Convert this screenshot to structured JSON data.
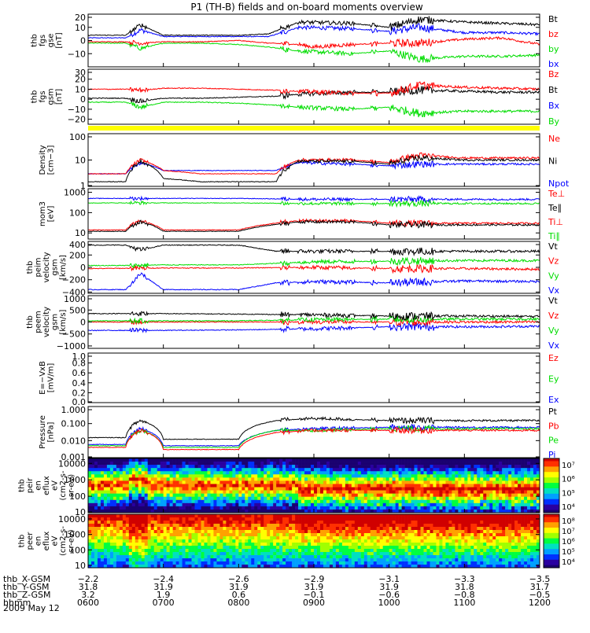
{
  "figure": {
    "title": "P1 (TH-B) fields and on-board moments overview",
    "date": "2009 May 12"
  },
  "colors": {
    "black": "#000000",
    "red": "#ff0000",
    "green": "#00dd00",
    "blue": "#0000ff",
    "yellow": "#ffff00"
  },
  "chart_data": [
    {
      "type": "line",
      "ylabel_lines": [
        "thb",
        "fgs",
        "gse",
        "[nT]"
      ],
      "ylim": [
        -20,
        20
      ],
      "yticks": [
        "20",
        "10",
        "0",
        "−10"
      ],
      "legend": [
        {
          "label": "Bt",
          "color": "#000000"
        },
        {
          "label": "bz",
          "color": "#ff0000"
        },
        {
          "label": "by",
          "color": "#00dd00"
        },
        {
          "label": "bx",
          "color": "#0000ff"
        }
      ],
      "series": [
        {
          "color": "#0000ff",
          "x": [
            6.0,
            6.5,
            6.7,
            7.0,
            7.5,
            8.0,
            8.4,
            8.8,
            9.5,
            10.0,
            10.4,
            11.0,
            11.5,
            12.0
          ],
          "y": [
            2,
            2,
            8,
            3,
            3,
            3,
            3,
            10,
            9,
            7,
            10,
            6,
            6,
            5
          ]
        },
        {
          "color": "#00dd00",
          "x": [
            6.0,
            6.5,
            6.7,
            7.0,
            7.5,
            8.0,
            8.4,
            8.8,
            9.5,
            10.0,
            10.4,
            11.0,
            11.5,
            12.0
          ],
          "y": [
            -2,
            -2,
            -6,
            -2,
            -2,
            -3,
            -5,
            -8,
            -10,
            -8,
            -14,
            -12,
            -12,
            -11
          ]
        },
        {
          "color": "#ff0000",
          "x": [
            6.0,
            6.5,
            6.7,
            7.0,
            7.5,
            8.0,
            8.4,
            8.8,
            9.0,
            9.5,
            10.0,
            10.4,
            11.0,
            11.5,
            12.0
          ],
          "y": [
            -1,
            -1,
            -2,
            -1,
            -1,
            0,
            -2,
            -3,
            -5,
            -3,
            -2,
            -2,
            1,
            2,
            -3
          ]
        },
        {
          "color": "#000000",
          "x": [
            6.0,
            6.5,
            6.7,
            7.0,
            7.5,
            8.0,
            8.4,
            8.8,
            9.5,
            10.0,
            10.4,
            11.0,
            11.5,
            12.0
          ],
          "y": [
            4,
            4,
            12,
            4,
            4,
            4,
            5,
            14,
            13,
            10,
            16,
            14,
            13,
            12
          ]
        }
      ]
    },
    {
      "type": "line",
      "ylabel_lines": [
        "thb",
        "fgs",
        "gsm",
        "[nT]"
      ],
      "ylim": [
        -25,
        30
      ],
      "yticks": [
        "30",
        "20",
        "10",
        "0",
        "−10",
        "−20"
      ],
      "legend": [
        {
          "label": "Bz",
          "color": "#ff0000"
        },
        {
          "label": "Bt",
          "color": "#000000"
        },
        {
          "label": "Bx",
          "color": "#0000ff"
        },
        {
          "label": "By",
          "color": "#00dd00"
        }
      ],
      "series": [
        {
          "color": "#00dd00",
          "x": [
            6.0,
            6.5,
            6.7,
            7.0,
            7.5,
            8.0,
            8.5,
            8.8,
            9.5,
            10.0,
            10.4,
            11.0,
            11.5,
            12.0
          ],
          "y": [
            -3,
            -3,
            -8,
            -3,
            -3,
            -4,
            -6,
            -8,
            -10,
            -8,
            -14,
            -12,
            -12,
            -12
          ]
        },
        {
          "color": "#000000",
          "x": [
            6.0,
            6.5,
            6.7,
            7.0,
            7.5,
            8.0,
            8.5,
            8.8,
            9.5,
            10.0,
            10.4,
            11.0,
            11.5,
            12.0
          ],
          "y": [
            1,
            1,
            -2,
            1,
            1,
            2,
            3,
            5,
            7,
            7,
            9,
            8,
            7,
            7
          ]
        },
        {
          "color": "#ff0000",
          "x": [
            6.0,
            6.5,
            6.7,
            7.0,
            7.5,
            8.0,
            8.5,
            8.8,
            9.5,
            10.0,
            10.4,
            11.0,
            11.5,
            12.0
          ],
          "y": [
            10,
            10,
            9,
            11,
            11,
            10,
            9,
            8,
            6,
            6,
            14,
            12,
            11,
            10
          ]
        }
      ]
    },
    {
      "type": "line",
      "ylabel_lines": [
        "Density",
        "[cm−3]"
      ],
      "yscale": "log",
      "ylim": [
        1,
        100
      ],
      "yticks": [
        "100",
        "10",
        "1"
      ],
      "legend": [
        {
          "label": "Ne",
          "color": "#ff0000"
        },
        {
          "label": "Ni",
          "color": "#000000"
        },
        {
          "label": "Npot",
          "color": "#0000ff"
        }
      ],
      "series": [
        {
          "color": "#0000ff",
          "x": [
            6.0,
            6.5,
            6.7,
            7.0,
            7.5,
            8.0,
            8.5,
            8.8,
            9.5,
            10.0,
            10.4,
            11.0,
            11.5,
            12.0
          ],
          "y": [
            3,
            3,
            8,
            4,
            4,
            4,
            4,
            8,
            7,
            6,
            7,
            7,
            7,
            7
          ]
        },
        {
          "color": "#ff0000",
          "x": [
            6.0,
            6.5,
            6.7,
            7.0,
            7.5,
            8.0,
            8.5,
            8.8,
            9.5,
            10.0,
            10.4,
            11.0,
            11.5,
            12.0
          ],
          "y": [
            3,
            3,
            10,
            4,
            3,
            3,
            3,
            10,
            10,
            8,
            15,
            12,
            12,
            12
          ]
        },
        {
          "color": "#000000",
          "x": [
            6.0,
            6.5,
            6.7,
            7.0,
            7.5,
            8.0,
            8.5,
            8.8,
            9.5,
            10.0,
            10.4,
            11.0,
            11.5,
            12.0
          ],
          "y": [
            1.5,
            1.5,
            9,
            2,
            1.5,
            1.5,
            1.5,
            9,
            9,
            7,
            12,
            10,
            10,
            10
          ]
        }
      ]
    },
    {
      "type": "line",
      "ylabel_lines": [
        "mom3",
        "[eV]"
      ],
      "yscale": "log",
      "ylim": [
        5,
        1500
      ],
      "yticks": [
        "1000",
        "100",
        "10"
      ],
      "legend": [
        {
          "label": "Te⊥",
          "color": "#ff0000"
        },
        {
          "label": "Te∥",
          "color": "#000000"
        },
        {
          "label": "Ti⊥",
          "color": "#ff0000"
        },
        {
          "label": "Ti∥",
          "color": "#00dd00"
        }
      ],
      "series": [
        {
          "color": "#0000ff",
          "x": [
            6.0,
            6.5,
            7.0,
            8.0,
            9.0,
            10.0,
            11.0,
            12.0
          ],
          "y": [
            500,
            500,
            500,
            500,
            450,
            450,
            450,
            450
          ]
        },
        {
          "color": "#00dd00",
          "x": [
            6.0,
            6.5,
            7.0,
            8.0,
            9.0,
            10.0,
            11.0,
            12.0
          ],
          "y": [
            300,
            300,
            300,
            300,
            280,
            280,
            280,
            280
          ]
        },
        {
          "color": "#ff0000",
          "x": [
            6.0,
            6.5,
            6.7,
            7.0,
            8.0,
            8.8,
            9.5,
            10.0,
            11.0,
            12.0
          ],
          "y": [
            14,
            14,
            40,
            14,
            14,
            40,
            40,
            30,
            30,
            30
          ]
        },
        {
          "color": "#000000",
          "x": [
            6.0,
            6.5,
            6.7,
            7.0,
            8.0,
            8.8,
            9.5,
            10.0,
            11.0,
            12.0
          ],
          "y": [
            12,
            12,
            35,
            12,
            12,
            35,
            35,
            25,
            25,
            25
          ]
        }
      ]
    },
    {
      "type": "line",
      "ylabel_lines": [
        "thb",
        "peim",
        "velocity",
        "gsm",
        "[km/s]"
      ],
      "ylim": [
        -420,
        420
      ],
      "yticks": [
        "400",
        "200",
        "0",
        "−200",
        "−400"
      ],
      "legend": [
        {
          "label": "Vt",
          "color": "#000000"
        },
        {
          "label": "Vz",
          "color": "#ff0000"
        },
        {
          "label": "Vy",
          "color": "#00dd00"
        },
        {
          "label": "Vx",
          "color": "#0000ff"
        }
      ],
      "series": [
        {
          "color": "#0000ff",
          "x": [
            6.0,
            6.5,
            6.7,
            7.0,
            8.0,
            8.5,
            9.0,
            10.0,
            11.0,
            12.0
          ],
          "y": [
            -360,
            -360,
            -100,
            -360,
            -360,
            -250,
            -230,
            -250,
            -220,
            -230
          ]
        },
        {
          "color": "#ff0000",
          "x": [
            6.0,
            7.0,
            8.0,
            9.0,
            10.0,
            11.0,
            12.0
          ],
          "y": [
            -20,
            -10,
            -10,
            0,
            -20,
            -20,
            -30
          ]
        },
        {
          "color": "#00dd00",
          "x": [
            6.0,
            6.5,
            7.0,
            8.0,
            9.0,
            10.0,
            11.0,
            12.0
          ],
          "y": [
            30,
            30,
            40,
            40,
            90,
            100,
            110,
            110
          ]
        },
        {
          "color": "#000000",
          "x": [
            6.0,
            6.5,
            6.7,
            7.0,
            8.0,
            8.5,
            9.0,
            10.0,
            11.0,
            12.0
          ],
          "y": [
            360,
            360,
            280,
            360,
            360,
            260,
            260,
            260,
            260,
            260
          ]
        }
      ]
    },
    {
      "type": "line",
      "ylabel_lines": [
        "thb",
        "peem",
        "velocity",
        "gsm",
        "[km/s]"
      ],
      "ylim": [
        -1100,
        1100
      ],
      "yticks": [
        "1000",
        "500",
        "0",
        "−500",
        "−1000"
      ],
      "legend": [
        {
          "label": "Vt",
          "color": "#000000"
        },
        {
          "label": "Vz",
          "color": "#ff0000"
        },
        {
          "label": "Vy",
          "color": "#00dd00"
        },
        {
          "label": "Vx",
          "color": "#0000ff"
        }
      ],
      "series": [
        {
          "color": "#0000ff",
          "x": [
            6.0,
            7.0,
            8.0,
            9.0,
            10.0,
            11.0,
            12.0
          ],
          "y": [
            -350,
            -350,
            -330,
            -280,
            -200,
            -200,
            -180
          ]
        },
        {
          "color": "#ff0000",
          "x": [
            6.0,
            7.0,
            8.0,
            9.0,
            10.0,
            11.0,
            12.0
          ],
          "y": [
            0,
            0,
            0,
            0,
            0,
            0,
            0
          ]
        },
        {
          "color": "#00dd00",
          "x": [
            6.0,
            7.0,
            8.0,
            9.0,
            10.0,
            11.0,
            12.0
          ],
          "y": [
            50,
            50,
            50,
            100,
            120,
            120,
            120
          ]
        },
        {
          "color": "#000000",
          "x": [
            6.0,
            7.0,
            8.0,
            9.0,
            10.0,
            11.0,
            12.0
          ],
          "y": [
            350,
            350,
            330,
            300,
            250,
            250,
            230
          ]
        }
      ]
    },
    {
      "type": "line",
      "ylabel_lines": [
        "E=−VxB",
        "[mV/m]"
      ],
      "ylim": [
        0,
        1
      ],
      "yticks": [
        "1.0",
        "0.8",
        "0.6",
        "0.4",
        "0.2",
        "0.0"
      ],
      "legend": [
        {
          "label": "Ez",
          "color": "#ff0000"
        },
        {
          "label": "Ey",
          "color": "#00dd00"
        },
        {
          "label": "Ex",
          "color": "#0000ff"
        }
      ],
      "series": []
    },
    {
      "type": "line",
      "ylabel_lines": [
        "Pressure",
        "[nPa]"
      ],
      "yscale": "log",
      "ylim": [
        0.001,
        1
      ],
      "yticks": [
        "1.000",
        "0.100",
        "0.010",
        "0.001"
      ],
      "legend": [
        {
          "label": "Pt",
          "color": "#000000"
        },
        {
          "label": "Pb",
          "color": "#ff0000"
        },
        {
          "label": "Pe",
          "color": "#00dd00"
        },
        {
          "label": "Pi",
          "color": "#0000ff"
        }
      ],
      "series": [
        {
          "color": "#0000ff",
          "x": [
            6.0,
            6.5,
            6.7,
            7.0,
            8.0,
            8.5,
            9.0,
            10.0,
            11.0,
            12.0
          ],
          "y": [
            0.006,
            0.006,
            0.05,
            0.005,
            0.005,
            0.04,
            0.05,
            0.06,
            0.06,
            0.06
          ]
        },
        {
          "color": "#00dd00",
          "x": [
            6.0,
            6.5,
            6.7,
            7.0,
            8.0,
            8.5,
            9.0,
            10.0,
            11.0,
            12.0
          ],
          "y": [
            0.005,
            0.005,
            0.04,
            0.004,
            0.004,
            0.04,
            0.04,
            0.05,
            0.05,
            0.05
          ]
        },
        {
          "color": "#ff0000",
          "x": [
            6.0,
            6.5,
            6.7,
            7.0,
            8.0,
            8.5,
            9.0,
            10.0,
            11.0,
            12.0
          ],
          "y": [
            0.004,
            0.004,
            0.04,
            0.003,
            0.003,
            0.03,
            0.04,
            0.04,
            0.04,
            0.04
          ]
        },
        {
          "color": "#000000",
          "x": [
            6.0,
            6.5,
            6.7,
            7.0,
            8.0,
            8.5,
            9.0,
            10.0,
            11.0,
            12.0
          ],
          "y": [
            0.015,
            0.015,
            0.15,
            0.012,
            0.012,
            0.15,
            0.2,
            0.15,
            0.15,
            0.15
          ]
        }
      ]
    },
    {
      "type": "heatmap",
      "ylabel_lines": [
        "thb",
        "peir",
        "en",
        "eflux",
        "eV",
        "(cm2-s-",
        "sr-eV)"
      ],
      "yscale": "log",
      "ylim": [
        10,
        20000
      ],
      "yticks": [
        "10000",
        "1000",
        "100",
        "10"
      ],
      "colorbar": {
        "ticks": [
          "10⁷",
          "10⁶",
          "10⁵",
          "10⁴"
        ]
      }
    },
    {
      "type": "heatmap",
      "ylabel_lines": [
        "thb",
        "peer",
        "en",
        "eflux",
        "eV",
        "(cm2-s-",
        "sr-eV)"
      ],
      "yscale": "log",
      "ylim": [
        7,
        20000
      ],
      "yticks": [
        "10000",
        "1000",
        "100",
        "10"
      ],
      "colorbar": {
        "ticks": [
          "10⁸",
          "10⁷",
          "10⁶",
          "10⁵",
          "10⁴"
        ]
      }
    }
  ],
  "time_axis": {
    "xlim": [
      6.0,
      12.0
    ],
    "rows": [
      {
        "label": "thb_X-GSM",
        "values": [
          "−2.2",
          "−2.4",
          "−2.6",
          "−2.9",
          "−3.1",
          "−3.3",
          "−3.5"
        ]
      },
      {
        "label": "thb_Y-GSM",
        "values": [
          "31.8",
          "31.9",
          "31.9",
          "31.9",
          "31.9",
          "31.8",
          "31.7"
        ]
      },
      {
        "label": "thb_Z-GSM",
        "values": [
          "3.2",
          "1.9",
          "0.6",
          "−0.1",
          "−0.6",
          "−0.8",
          "−0.5"
        ]
      },
      {
        "label": "hhmm",
        "values": [
          "0600",
          "0700",
          "0800",
          "0900",
          "1000",
          "1100",
          "1200"
        ]
      }
    ]
  }
}
